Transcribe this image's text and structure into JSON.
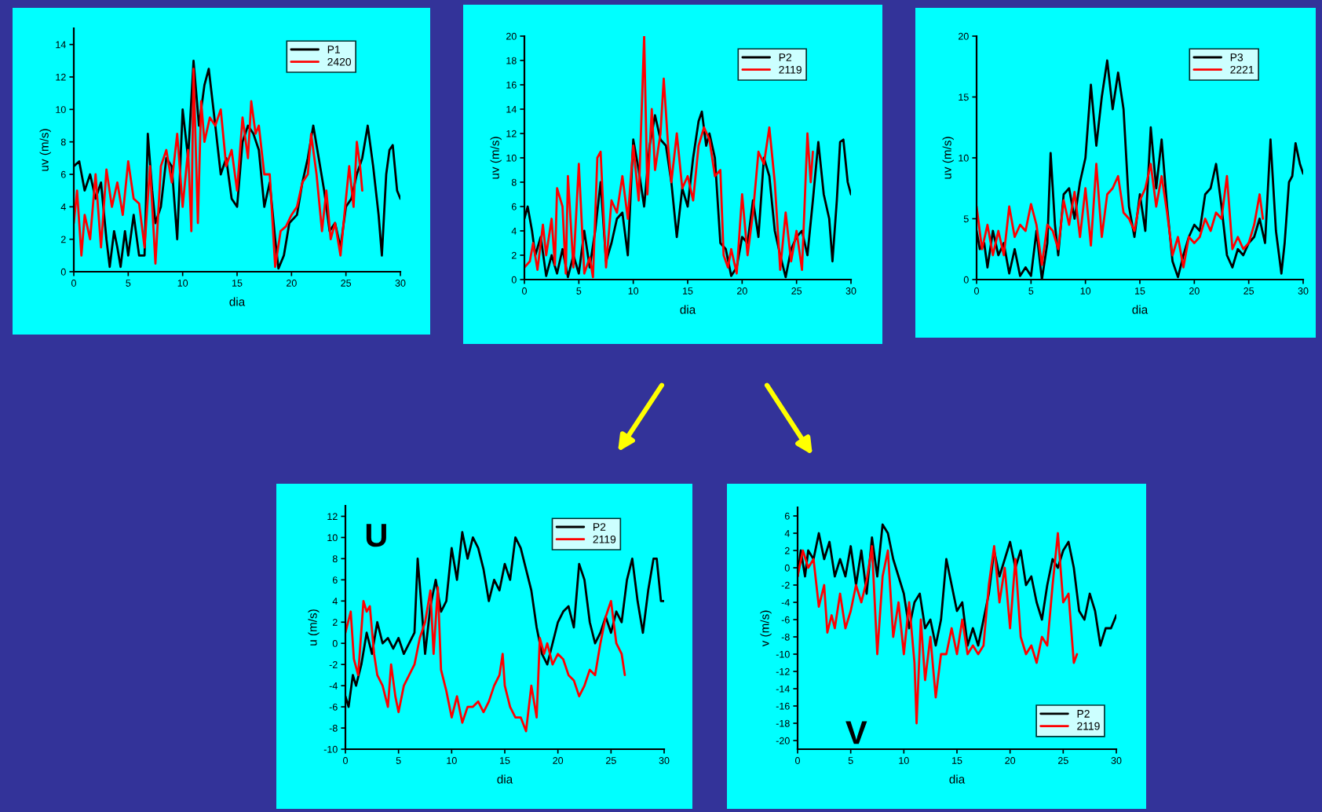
{
  "chart_data": [
    {
      "type": "line",
      "xlabel": "dia",
      "ylabel": "uv (m/s)",
      "xlim": [
        0,
        30
      ],
      "ylim": [
        0,
        15
      ],
      "xticks": [
        0,
        5,
        10,
        15,
        20,
        25,
        30
      ],
      "yticks": [
        0,
        2,
        4,
        6,
        8,
        10,
        12,
        14
      ],
      "legend": "top right",
      "series": [
        {
          "name": "P1",
          "color": "#000000",
          "x": [
            0,
            0.5,
            1,
            1.5,
            2,
            2.5,
            3,
            3.3,
            3.7,
            4,
            4.3,
            4.7,
            5,
            5.5,
            6,
            6.5,
            6.8,
            7.2,
            7.5,
            8,
            8.5,
            9,
            9.5,
            10,
            10.5,
            11,
            11.5,
            12,
            12.4,
            13,
            13.5,
            14,
            14.5,
            15,
            15.5,
            16,
            16.5,
            17,
            17.5,
            18,
            18.5,
            18.8,
            19.3,
            19.8,
            20.5,
            21,
            21.5,
            22,
            22.5,
            23,
            23.5,
            24,
            24.5,
            25,
            25.5,
            26,
            26.5,
            27,
            27.5,
            28,
            28.3,
            28.7,
            29,
            29.3,
            29.7,
            30
          ],
          "values": [
            6.5,
            6.8,
            5,
            6,
            4.5,
            5.5,
            2,
            0.3,
            2.5,
            1.5,
            0.3,
            2.5,
            1,
            3.5,
            1,
            1,
            8.5,
            5,
            3,
            4,
            7,
            6.5,
            2,
            10,
            7,
            13,
            9,
            11.5,
            12.5,
            9,
            6,
            7,
            4.5,
            4,
            8,
            9,
            8.5,
            7.5,
            4,
            5.5,
            2,
            0.2,
            1,
            3,
            3.5,
            5.5,
            7,
            9,
            7,
            5,
            2.5,
            3,
            1.5,
            4,
            4.5,
            6,
            7,
            9,
            6.5,
            3.5,
            1,
            6,
            7.5,
            7.8,
            5,
            4.5
          ]
        },
        {
          "name": "2420",
          "color": "#ff0000",
          "x": [
            0,
            0.3,
            0.7,
            1,
            1.5,
            2,
            2.5,
            3,
            3.5,
            4,
            4.5,
            5,
            5.5,
            6,
            6.5,
            7,
            7.5,
            8,
            8.5,
            9,
            9.5,
            10,
            10.5,
            10.8,
            11,
            11.4,
            11.7,
            12,
            12.5,
            13,
            13.5,
            14,
            14.5,
            15,
            15.5,
            16,
            16.3,
            16.7,
            17,
            17.5,
            18,
            18.5,
            19,
            19.5,
            20,
            20.5,
            21,
            21.5,
            21.8,
            22.3,
            22.8,
            23.2,
            23.6,
            24,
            24.5,
            25,
            25.3,
            25.7,
            26,
            26.3,
            26.5
          ],
          "values": [
            3,
            5,
            1,
            3.5,
            2,
            6,
            1.5,
            6.3,
            4,
            5.5,
            3.5,
            6.8,
            4.5,
            4.2,
            1.5,
            6.5,
            0.5,
            6.5,
            7.5,
            5.5,
            8.5,
            4,
            7.5,
            2.5,
            12.5,
            3,
            10.5,
            8,
            9.5,
            9,
            10,
            6.5,
            7.5,
            5,
            9.5,
            7,
            10.5,
            8.5,
            9,
            6,
            6,
            0.3,
            2.5,
            2.8,
            3.5,
            4,
            5.5,
            6,
            8.5,
            6,
            2.5,
            5,
            2,
            3,
            1,
            4.5,
            6.5,
            4,
            8,
            6.5,
            5
          ]
        }
      ]
    },
    {
      "type": "line",
      "xlabel": "dia",
      "ylabel": "uv (m/s)",
      "xlim": [
        0,
        30
      ],
      "ylim": [
        0,
        20
      ],
      "xticks": [
        0,
        5,
        10,
        15,
        20,
        25,
        30
      ],
      "yticks": [
        0,
        2,
        4,
        6,
        8,
        10,
        12,
        14,
        16,
        18,
        20
      ],
      "legend": "top right",
      "series": [
        {
          "name": "P2",
          "color": "#000000",
          "x": [
            0,
            0.3,
            0.7,
            1,
            1.5,
            2,
            2.5,
            3,
            3.5,
            4,
            4.5,
            5,
            5.5,
            6,
            6.5,
            7,
            7.5,
            8,
            8.5,
            9,
            9.5,
            10,
            10.5,
            11,
            11.5,
            12,
            12.5,
            13,
            13.5,
            14,
            14.5,
            15,
            15.5,
            16,
            16.3,
            16.7,
            17,
            17.5,
            18,
            18.5,
            19,
            19.5,
            20,
            20.5,
            21,
            21.5,
            22,
            22.5,
            23,
            23.5,
            24,
            24.5,
            25,
            25.5,
            26,
            26.5,
            27,
            27.5,
            28,
            28.3,
            28.7,
            29,
            29.3,
            29.7,
            30
          ],
          "values": [
            5,
            6,
            4,
            2,
            3.5,
            0.3,
            2,
            0.5,
            2.5,
            0.2,
            2,
            0.5,
            4,
            1,
            4,
            8,
            1.5,
            3,
            5,
            5.5,
            2,
            11.5,
            9,
            6,
            11,
            13.5,
            11.5,
            11,
            8,
            3.5,
            7.5,
            6,
            10,
            13,
            13.8,
            11,
            12,
            10,
            3,
            2.5,
            0.3,
            1,
            3.5,
            3,
            6.5,
            3.5,
            10,
            8.5,
            4,
            2,
            0.2,
            2.5,
            3.5,
            4,
            2,
            6.5,
            11.3,
            7,
            5,
            1.5,
            6.5,
            11.3,
            11.5,
            8,
            7
          ]
        },
        {
          "name": "2119",
          "color": "#ff0000",
          "x": [
            0,
            0.5,
            0.8,
            1.2,
            1.7,
            2,
            2.5,
            2.8,
            3,
            3.5,
            3.8,
            4,
            4.5,
            5,
            5.5,
            6,
            6.3,
            6.7,
            7,
            7.5,
            8,
            8.5,
            9,
            9.5,
            10,
            10.5,
            11,
            11.3,
            11.7,
            12,
            12.5,
            12.8,
            13.2,
            13.5,
            14,
            14.5,
            15,
            15.5,
            16,
            16.5,
            17,
            17.5,
            18,
            18.3,
            18.7,
            19,
            19.5,
            20,
            20.5,
            21,
            21.5,
            22,
            22.5,
            23,
            23.5,
            24,
            24.5,
            25,
            25.5,
            26,
            26.3,
            26.5
          ],
          "values": [
            1,
            1.5,
            3,
            0.8,
            4.5,
            2,
            5,
            1.2,
            7.5,
            6,
            0.5,
            8.5,
            1,
            9.5,
            0.5,
            1.8,
            0.2,
            10,
            10.5,
            1,
            6.5,
            5.5,
            8.5,
            5,
            11,
            6.5,
            20,
            7,
            14,
            9,
            12,
            16.5,
            11,
            8,
            12,
            7.5,
            8.5,
            6.5,
            11,
            12.5,
            11.5,
            8.5,
            9,
            2,
            1,
            2.5,
            0.5,
            7,
            2,
            5.5,
            10.5,
            9.5,
            12.5,
            8,
            0.8,
            5.5,
            1.5,
            4,
            0.8,
            12,
            8,
            10.5
          ]
        }
      ]
    },
    {
      "type": "line",
      "xlabel": "dia",
      "ylabel": "uv (m/s)",
      "xlim": [
        0,
        30
      ],
      "ylim": [
        0,
        20
      ],
      "xticks": [
        0,
        5,
        10,
        15,
        20,
        25,
        30
      ],
      "yticks": [
        0,
        5,
        10,
        15,
        20
      ],
      "legend": "top right",
      "series": [
        {
          "name": "P3",
          "color": "#000000",
          "x": [
            0,
            0.3,
            0.7,
            1,
            1.5,
            2,
            2.5,
            3,
            3.5,
            4,
            4.5,
            5,
            5.5,
            6,
            6.5,
            6.8,
            7.2,
            7.5,
            8,
            8.5,
            9,
            9.5,
            10,
            10.5,
            11,
            11.5,
            12,
            12.5,
            13,
            13.5,
            14,
            14.5,
            15,
            15.5,
            16,
            16.5,
            17,
            17.5,
            18,
            18.5,
            19,
            19.5,
            20,
            20.5,
            21,
            21.5,
            22,
            22.5,
            23,
            23.5,
            24,
            24.5,
            25,
            25.5,
            26,
            26.5,
            27,
            27.5,
            28,
            28.3,
            28.7,
            29,
            29.3,
            29.7,
            30
          ],
          "values": [
            4,
            2.5,
            3,
            1,
            4,
            2,
            3,
            0.5,
            2.5,
            0.3,
            1,
            0.3,
            4,
            0,
            3,
            10.4,
            4.5,
            2,
            7,
            7.5,
            5,
            8,
            10,
            16,
            11,
            15,
            18,
            14,
            17,
            14,
            6,
            3.5,
            7,
            4,
            12.5,
            7.5,
            11.5,
            6,
            1.5,
            0.2,
            2,
            3.5,
            4.5,
            4,
            7,
            7.5,
            9.5,
            6,
            2,
            1,
            2.5,
            2,
            3,
            3.5,
            5,
            3,
            11.5,
            4,
            0.5,
            3,
            8,
            8.5,
            11.2,
            9.5,
            8.7
          ]
        },
        {
          "name": "2221",
          "color": "#ff0000",
          "x": [
            0,
            0.5,
            1,
            1.5,
            2,
            2.5,
            3,
            3.5,
            4,
            4.5,
            5,
            5.5,
            6,
            6.5,
            7,
            7.5,
            8,
            8.5,
            9,
            9.5,
            10,
            10.5,
            11,
            11.5,
            12,
            12.5,
            13,
            13.5,
            14,
            14.5,
            15,
            15.5,
            16,
            16.5,
            17,
            17.5,
            18,
            18.5,
            19,
            19.5,
            20,
            20.5,
            21,
            21.5,
            22,
            22.5,
            23,
            23.5,
            24,
            24.5,
            25,
            25.5,
            26,
            26.3
          ],
          "values": [
            6,
            2.5,
            4.5,
            2,
            4,
            2,
            6,
            3.5,
            4.5,
            4,
            6.2,
            4.5,
            1.2,
            4.5,
            4,
            2.5,
            6.5,
            4.5,
            7.2,
            3.5,
            7.5,
            2.8,
            9.5,
            3.5,
            7,
            7.5,
            8.5,
            5.5,
            5,
            4,
            6.5,
            7.5,
            9.5,
            6,
            8.5,
            5.5,
            2,
            3.5,
            1,
            3.5,
            3,
            3.5,
            5,
            4,
            5.5,
            5,
            8.5,
            2.5,
            3.5,
            2.5,
            3,
            4.5,
            7,
            5
          ]
        }
      ]
    },
    {
      "type": "line",
      "xlabel": "dia",
      "ylabel": "u (m/s)",
      "xlim": [
        0,
        30
      ],
      "ylim": [
        -10,
        13
      ],
      "xticks": [
        0,
        5,
        10,
        15,
        20,
        25,
        30
      ],
      "yticks": [
        -10,
        -8,
        -6,
        -4,
        -2,
        0,
        2,
        4,
        6,
        8,
        10,
        12
      ],
      "legend": "top right",
      "annotations": [
        "U"
      ],
      "series": [
        {
          "name": "P2",
          "color": "#000000",
          "x": [
            0,
            0.3,
            0.7,
            1,
            1.5,
            2,
            2.5,
            3,
            3.5,
            4,
            4.5,
            5,
            5.5,
            6,
            6.5,
            6.8,
            7.2,
            7.5,
            8,
            8.5,
            9,
            9.5,
            10,
            10.5,
            11,
            11.5,
            12,
            12.5,
            13,
            13.5,
            14,
            14.5,
            15,
            15.5,
            16,
            16.5,
            17,
            17.5,
            18,
            18.5,
            19,
            19.5,
            20,
            20.5,
            21,
            21.5,
            22,
            22.5,
            23,
            23.5,
            24,
            24.5,
            25,
            25.5,
            26,
            26.5,
            27,
            27.5,
            28,
            28.5,
            29,
            29.3,
            29.7,
            30
          ],
          "values": [
            -5,
            -6,
            -3,
            -4,
            -2,
            1,
            -1,
            2,
            0,
            0.5,
            -0.5,
            0.5,
            -1,
            0,
            1,
            8,
            3,
            -1,
            3.5,
            6,
            3,
            4,
            9,
            6,
            10.5,
            8,
            10,
            9,
            7,
            4,
            6,
            5,
            7.5,
            6,
            10,
            9,
            7,
            5,
            1.5,
            -1,
            -2,
            0,
            2,
            3,
            3.5,
            1.5,
            7.5,
            6,
            2,
            0,
            1,
            2.5,
            1,
            3,
            2,
            6,
            8,
            4,
            1,
            5,
            8,
            8,
            4,
            4
          ]
        },
        {
          "name": "2119",
          "color": "#ff0000",
          "x": [
            0,
            0.5,
            0.8,
            1.2,
            1.7,
            2,
            2.3,
            2.7,
            3,
            3.5,
            4,
            4.3,
            4.7,
            5,
            5.5,
            6,
            6.5,
            7,
            7.5,
            8,
            8.3,
            8.7,
            9,
            9.5,
            10,
            10.5,
            11,
            11.5,
            12,
            12.5,
            13,
            13.5,
            14,
            14.5,
            14.8,
            15,
            15.5,
            16,
            16.5,
            17,
            17.5,
            18,
            18.3,
            18.7,
            19,
            19.5,
            20,
            20.5,
            21,
            21.5,
            22,
            22.5,
            23,
            23.5,
            24,
            24.5,
            25,
            25.5,
            26,
            26.3
          ],
          "values": [
            1,
            3,
            -1.5,
            -3,
            4,
            3,
            3.5,
            -1,
            -3,
            -4,
            -6,
            -2,
            -5,
            -6.5,
            -4,
            -3,
            -2,
            0.5,
            2,
            5,
            -1,
            5.3,
            -2.5,
            -4.5,
            -7,
            -5,
            -7.5,
            -6,
            -6,
            -5.5,
            -6.5,
            -5.5,
            -4,
            -3,
            -1,
            -4,
            -6,
            -7,
            -7,
            -8.3,
            -4,
            -7,
            0.5,
            -1,
            0,
            -2,
            -1,
            -1.5,
            -3,
            -3.5,
            -5,
            -4,
            -2.5,
            -3,
            0,
            2.5,
            4,
            0,
            -1,
            -3
          ]
        }
      ]
    },
    {
      "type": "line",
      "xlabel": "dia",
      "ylabel": "v (m/s)",
      "xlim": [
        0,
        30
      ],
      "ylim": [
        -21,
        7
      ],
      "xticks": [
        0,
        5,
        10,
        15,
        20,
        25,
        30
      ],
      "yticks": [
        -20,
        -18,
        -16,
        -14,
        -12,
        -10,
        -8,
        -6,
        -4,
        -2,
        0,
        2,
        4,
        6
      ],
      "legend": "bottom right",
      "annotations": [
        "V"
      ],
      "series": [
        {
          "name": "P2",
          "color": "#000000",
          "x": [
            0,
            0.3,
            0.7,
            1,
            1.5,
            2,
            2.5,
            3,
            3.5,
            4,
            4.5,
            5,
            5.5,
            6,
            6.5,
            7,
            7.5,
            8,
            8.5,
            9,
            9.5,
            10,
            10.5,
            11,
            11.5,
            12,
            12.5,
            13,
            13.5,
            14,
            14.5,
            15,
            15.5,
            16,
            16.5,
            17,
            17.5,
            18,
            18.5,
            19,
            19.5,
            20,
            20.5,
            21,
            21.5,
            22,
            22.5,
            23,
            23.5,
            24,
            24.5,
            25,
            25.5,
            26,
            26.5,
            27,
            27.5,
            28,
            28.5,
            29,
            29.5,
            30
          ],
          "values": [
            -1,
            2,
            -1,
            2,
            1,
            4,
            1,
            3,
            -1,
            1,
            -1,
            2.5,
            -2,
            2,
            -3,
            3.5,
            -1,
            5,
            4,
            1,
            -1,
            -3,
            -7,
            -4,
            -3,
            -7,
            -6,
            -9,
            -6,
            1,
            -2,
            -5,
            -4,
            -9,
            -7,
            -9,
            -6,
            -3,
            2,
            -1,
            1,
            3,
            0,
            2,
            -2,
            -1,
            -4,
            -6,
            -2,
            1,
            0,
            2,
            3,
            0,
            -5,
            -6,
            -3,
            -5,
            -9,
            -7,
            -7,
            -5.5
          ]
        },
        {
          "name": "2119",
          "color": "#ff0000",
          "x": [
            0,
            0.5,
            1,
            1.5,
            2,
            2.5,
            2.8,
            3.2,
            3.5,
            4,
            4.5,
            5,
            5.5,
            6,
            6.5,
            7,
            7.5,
            8,
            8.5,
            9,
            9.5,
            10,
            10.5,
            11,
            11.2,
            11.6,
            12,
            12.5,
            13,
            13.5,
            14,
            14.5,
            15,
            15.5,
            16,
            16.5,
            17,
            17.5,
            18,
            18.5,
            19,
            19.5,
            20,
            20.5,
            21,
            21.5,
            22,
            22.5,
            23,
            23.5,
            24,
            24.5,
            25,
            25.5,
            26,
            26.3
          ],
          "values": [
            -1,
            2,
            0,
            1,
            -4.5,
            -2,
            -7.5,
            -5.5,
            -7,
            -3,
            -7,
            -5,
            -2,
            -4,
            -1.5,
            2.5,
            -10,
            -1,
            2,
            -8,
            -4,
            -10,
            -4,
            -11,
            -18,
            -6,
            -13,
            -8,
            -15,
            -10,
            -10,
            -7,
            -10,
            -6,
            -10,
            -9,
            -10,
            -9,
            -2,
            2.5,
            -4,
            0,
            -7,
            1,
            -8,
            -10,
            -9,
            -11,
            -8,
            -9,
            -2,
            4,
            -4,
            -3,
            -11,
            -10
          ]
        }
      ]
    }
  ]
}
